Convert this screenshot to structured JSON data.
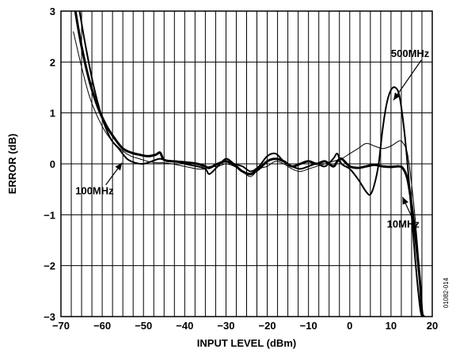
{
  "chart_data": {
    "type": "line",
    "title": "",
    "xlabel": "INPUT LEVEL (dBm)",
    "ylabel": "ERROR (dB)",
    "xlim": [
      -70,
      20
    ],
    "ylim": [
      -3,
      3
    ],
    "x_ticks": [
      -70,
      -60,
      -50,
      -40,
      -30,
      -20,
      -10,
      0,
      10,
      20
    ],
    "x_tick_labels": [
      "−70",
      "−60",
      "−50",
      "−40",
      "−30",
      "−20",
      "−10",
      "0",
      "10",
      "20"
    ],
    "y_ticks": [
      -3,
      -2,
      -1,
      0,
      1,
      2,
      3
    ],
    "y_tick_labels": [
      "−3",
      "−2",
      "−1",
      "0",
      "1",
      "2",
      "3"
    ],
    "grid": {
      "vertical_every_dbm": 2.5,
      "horizontal_every_db": 1
    },
    "figure_id": "01082-014",
    "series": [
      {
        "name": "10MHz",
        "style": "thick",
        "x": [
          -66.5,
          -65,
          -63,
          -61,
          -59,
          -57,
          -55,
          -53,
          -51,
          -49,
          -47,
          -46,
          -45,
          -43,
          -40,
          -37,
          -35,
          -34,
          -32,
          -30,
          -28,
          -26,
          -24,
          -22,
          -20,
          -18,
          -16,
          -14,
          -12,
          -10,
          -8,
          -6,
          -4,
          -3,
          -2,
          0,
          2,
          4,
          6,
          8,
          10,
          12,
          13,
          14,
          15,
          16,
          17,
          17.5,
          18
        ],
        "y": [
          3.0,
          2.3,
          1.6,
          1.1,
          0.75,
          0.5,
          0.3,
          0.22,
          0.18,
          0.15,
          0.18,
          0.22,
          0.08,
          0.05,
          0.03,
          0.0,
          -0.05,
          -0.08,
          0.0,
          0.05,
          -0.02,
          -0.15,
          -0.2,
          -0.1,
          0.05,
          0.1,
          0.05,
          -0.05,
          0.0,
          0.05,
          0.0,
          0.05,
          -0.05,
          0.05,
          0.1,
          -0.05,
          -0.08,
          -0.05,
          -0.02,
          -0.05,
          -0.06,
          -0.05,
          -0.1,
          -0.3,
          -0.8,
          -1.5,
          -2.3,
          -2.9,
          -3.0
        ]
      },
      {
        "name": "100MHz",
        "style": "thin",
        "x": [
          -67,
          -65,
          -63,
          -61,
          -59,
          -57,
          -55,
          -53,
          -51,
          -49,
          -47,
          -45,
          -43,
          -40,
          -37,
          -35,
          -34,
          -32,
          -30,
          -28,
          -26,
          -24,
          -22,
          -20,
          -18,
          -16,
          -14,
          -12,
          -10,
          -8,
          -6,
          -4,
          -2,
          0,
          2,
          4,
          6,
          8,
          10,
          12,
          13,
          14,
          15,
          16,
          17,
          17.5
        ],
        "y": [
          2.6,
          1.9,
          1.3,
          0.9,
          0.6,
          0.4,
          0.25,
          0.15,
          0.1,
          0.05,
          0.02,
          0.02,
          0.0,
          -0.05,
          -0.1,
          -0.1,
          -0.05,
          -0.05,
          0.0,
          -0.05,
          -0.15,
          -0.25,
          -0.1,
          -0.05,
          0.05,
          0.0,
          -0.1,
          -0.15,
          -0.1,
          -0.05,
          0.0,
          0.05,
          0.1,
          0.2,
          0.3,
          0.4,
          0.35,
          0.3,
          0.35,
          0.45,
          0.4,
          0.2,
          -0.4,
          -1.2,
          -2.2,
          -3.0
        ]
      },
      {
        "name": "500MHz",
        "style": "medium",
        "x": [
          -65.5,
          -64,
          -62,
          -60,
          -58,
          -56,
          -54,
          -52,
          -50,
          -48,
          -46,
          -44,
          -42,
          -40,
          -37,
          -35,
          -34,
          -32,
          -30,
          -28,
          -26,
          -24,
          -22,
          -20,
          -18,
          -16,
          -14,
          -12,
          -10,
          -8,
          -6,
          -4,
          -3,
          -2,
          0,
          2,
          4,
          5,
          6,
          7,
          8,
          9,
          10,
          11,
          12,
          13,
          14,
          15,
          16,
          17,
          17.5
        ],
        "y": [
          3.0,
          2.3,
          1.5,
          0.9,
          0.5,
          0.3,
          0.1,
          0.02,
          0.0,
          0.05,
          0.1,
          0.05,
          0.05,
          0.0,
          -0.05,
          -0.1,
          -0.2,
          -0.05,
          0.1,
          0.0,
          -0.05,
          -0.15,
          -0.05,
          0.15,
          0.2,
          0.05,
          -0.05,
          -0.1,
          -0.05,
          0.0,
          -0.05,
          0.1,
          0.2,
          0.0,
          -0.1,
          -0.3,
          -0.55,
          -0.6,
          -0.4,
          0.0,
          0.7,
          1.2,
          1.45,
          1.5,
          1.35,
          0.8,
          0.0,
          -1.0,
          -2.0,
          -2.8,
          -3.0
        ]
      }
    ],
    "annotations": [
      {
        "text": "500MHz",
        "at_x": 10.0,
        "at_y": 2.1,
        "arrow_to_x": 10.6,
        "arrow_to_y": 1.25
      },
      {
        "text": "100MHz",
        "at_x": -66.5,
        "at_y": -0.6,
        "arrow_to_x": -55.2,
        "arrow_to_y": 0.02
      },
      {
        "text": "10MHz",
        "at_x": 9.0,
        "at_y": -1.25,
        "arrow_to_x": 12.8,
        "arrow_to_y": -0.65
      }
    ]
  }
}
